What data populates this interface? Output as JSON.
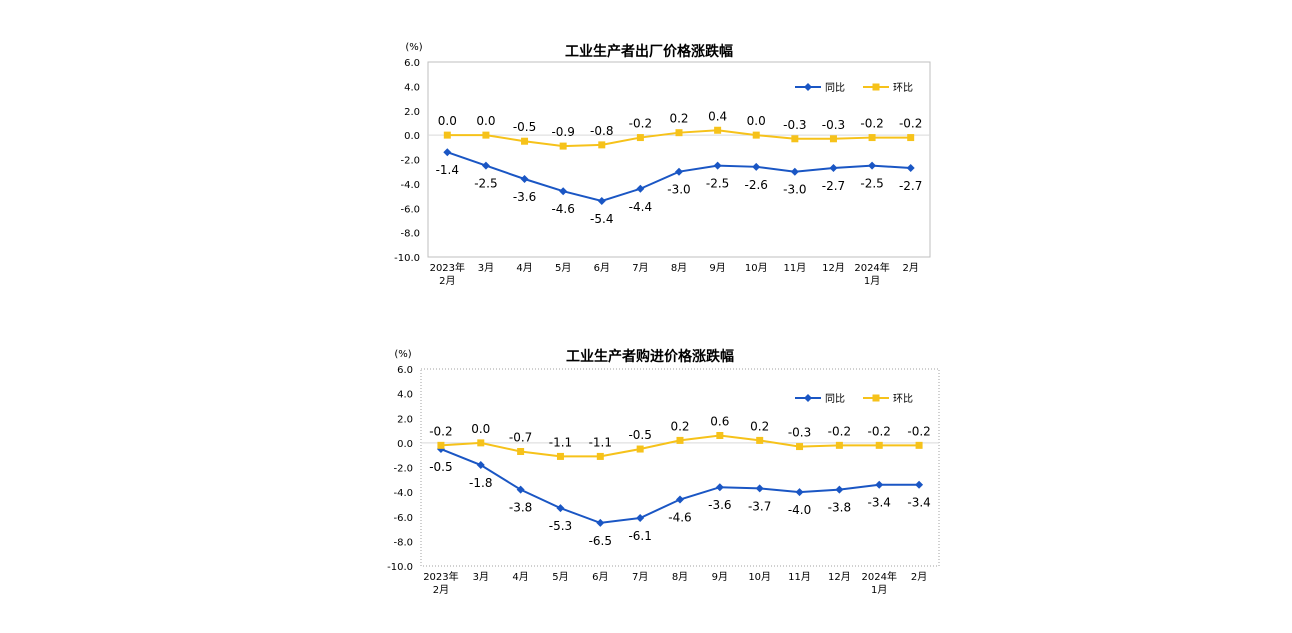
{
  "chart_data": [
    {
      "type": "line",
      "title": "工业生产者出厂价格涨跌幅",
      "unit": "(%)",
      "categories": [
        "2023年|2月",
        "3月",
        "4月",
        "5月",
        "6月",
        "7月",
        "8月",
        "9月",
        "10月",
        "11月",
        "12月",
        "2024年|1月",
        "2月"
      ],
      "ylim": [
        -10.0,
        6.0
      ],
      "yticks": [
        "6.0",
        "4.0",
        "2.0",
        "0.0",
        "-2.0",
        "-4.0",
        "-6.0",
        "-8.0",
        "-10.0"
      ],
      "grid": false,
      "legend_position": "top-right",
      "series": [
        {
          "name": "同比",
          "color": "#1a56c4",
          "marker": "diamond",
          "values": [
            -1.4,
            -2.5,
            -3.6,
            -4.6,
            -5.4,
            -4.4,
            -3.0,
            -2.5,
            -2.6,
            -3.0,
            -2.7,
            -2.5,
            -2.7
          ],
          "labels": [
            "-1.4",
            "-2.5",
            "-3.6",
            "-4.6",
            "-5.4",
            "-4.4",
            "-3.0",
            "-2.5",
            "-2.6",
            "-3.0",
            "-2.7",
            "-2.5",
            "-2.7"
          ]
        },
        {
          "name": "环比",
          "color": "#f6c21a",
          "marker": "square",
          "values": [
            0.0,
            0.0,
            -0.5,
            -0.9,
            -0.8,
            -0.2,
            0.2,
            0.4,
            0.0,
            -0.3,
            -0.3,
            -0.2,
            -0.2
          ],
          "labels": [
            "0.0",
            "0.0",
            "-0.5",
            "-0.9",
            "-0.8",
            "-0.2",
            "0.2",
            "0.4",
            "0.0",
            "-0.3",
            "-0.3",
            "-0.2",
            "-0.2"
          ]
        }
      ]
    },
    {
      "type": "line",
      "title": "工业生产者购进价格涨跌幅",
      "unit": "(%)",
      "categories": [
        "2023年|2月",
        "3月",
        "4月",
        "5月",
        "6月",
        "7月",
        "8月",
        "9月",
        "10月",
        "11月",
        "12月",
        "2024年|1月",
        "2月"
      ],
      "ylim": [
        -10.0,
        6.0
      ],
      "yticks": [
        "6.0",
        "4.0",
        "2.0",
        "0.0",
        "-2.0",
        "-4.0",
        "-6.0",
        "-8.0",
        "-10.0"
      ],
      "grid": false,
      "legend_position": "top-right",
      "series": [
        {
          "name": "同比",
          "color": "#1a56c4",
          "marker": "diamond",
          "values": [
            -0.5,
            -1.8,
            -3.8,
            -5.3,
            -6.5,
            -6.1,
            -4.6,
            -3.6,
            -3.7,
            -4.0,
            -3.8,
            -3.4,
            -3.4
          ],
          "labels": [
            "-0.5",
            "-1.8",
            "-3.8",
            "-5.3",
            "-6.5",
            "-6.1",
            "-4.6",
            "-3.6",
            "-3.7",
            "-4.0",
            "-3.8",
            "-3.4",
            "-3.4"
          ]
        },
        {
          "name": "环比",
          "color": "#f6c21a",
          "marker": "square",
          "values": [
            -0.2,
            0.0,
            -0.7,
            -1.1,
            -1.1,
            -0.5,
            0.2,
            0.6,
            0.2,
            -0.3,
            -0.2,
            -0.2,
            -0.2
          ],
          "labels": [
            "-0.2",
            "0.0",
            "-0.7",
            "-1.1",
            "-1.1",
            "-0.5",
            "0.2",
            "0.6",
            "0.2",
            "-0.3",
            "-0.2",
            "-0.2",
            "-0.2"
          ]
        }
      ]
    }
  ]
}
